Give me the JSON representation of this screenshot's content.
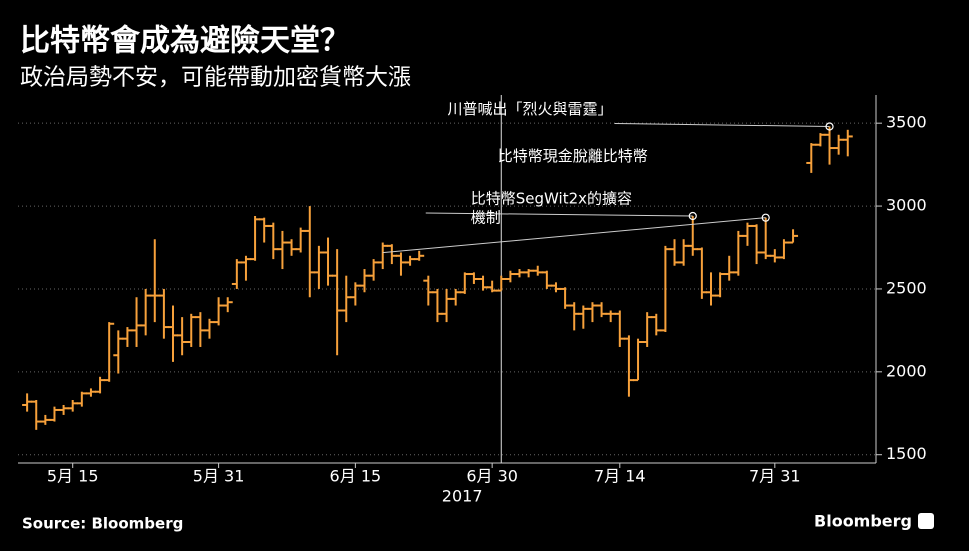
{
  "chart_data": {
    "type": "ohlc",
    "title": "比特幣會成為避險天堂？",
    "subtitle": "政治局勢不安，可能帶動加密貨幣大漲",
    "source": "Source: Bloomberg",
    "brand": "Bloomberg",
    "color": "#f7a13b",
    "x": [
      "2017-05-10",
      "2017-05-11",
      "2017-05-12",
      "2017-05-13",
      "2017-05-14",
      "2017-05-15",
      "2017-05-16",
      "2017-05-17",
      "2017-05-18",
      "2017-05-19",
      "2017-05-20",
      "2017-05-21",
      "2017-05-22",
      "2017-05-23",
      "2017-05-24",
      "2017-05-25",
      "2017-05-26",
      "2017-05-27",
      "2017-05-28",
      "2017-05-29",
      "2017-05-30",
      "2017-05-31",
      "2017-06-01",
      "2017-06-02",
      "2017-06-03",
      "2017-06-04",
      "2017-06-05",
      "2017-06-06",
      "2017-06-07",
      "2017-06-08",
      "2017-06-09",
      "2017-06-10",
      "2017-06-11",
      "2017-06-12",
      "2017-06-13",
      "2017-06-14",
      "2017-06-15",
      "2017-06-16",
      "2017-06-17",
      "2017-06-18",
      "2017-06-19",
      "2017-06-20",
      "2017-06-21",
      "2017-06-22",
      "2017-06-23",
      "2017-06-24",
      "2017-06-25",
      "2017-06-26",
      "2017-06-27",
      "2017-06-28",
      "2017-06-29",
      "2017-06-30",
      "2017-07-01",
      "2017-07-02",
      "2017-07-03",
      "2017-07-04",
      "2017-07-05",
      "2017-07-06",
      "2017-07-07",
      "2017-07-08",
      "2017-07-09",
      "2017-07-10",
      "2017-07-11",
      "2017-07-12",
      "2017-07-13",
      "2017-07-14",
      "2017-07-15",
      "2017-07-16",
      "2017-07-17",
      "2017-07-18",
      "2017-07-19",
      "2017-07-20",
      "2017-07-21",
      "2017-07-22",
      "2017-07-23",
      "2017-07-24",
      "2017-07-25",
      "2017-07-26",
      "2017-07-27",
      "2017-07-28",
      "2017-07-29",
      "2017-07-30",
      "2017-07-31",
      "2017-08-01",
      "2017-08-02",
      "2017-08-04",
      "2017-08-05",
      "2017-08-06",
      "2017-08-07",
      "2017-08-08"
    ],
    "open": [
      1800,
      1820,
      1700,
      1710,
      1770,
      1780,
      1810,
      1870,
      1880,
      1950,
      2100,
      2200,
      2250,
      2280,
      2460,
      2460,
      2270,
      2220,
      2180,
      2330,
      2250,
      2300,
      2400,
      2530,
      2660,
      2680,
      2920,
      2880,
      2740,
      2780,
      2740,
      2850,
      2600,
      2720,
      2580,
      2370,
      2450,
      2520,
      2580,
      2660,
      2760,
      2700,
      2660,
      2680,
      2550,
      2480,
      2350,
      2440,
      2480,
      2590,
      2560,
      2510,
      2490,
      2560,
      2590,
      2600,
      2610,
      2600,
      2520,
      2500,
      2400,
      2350,
      2380,
      2400,
      2350,
      2350,
      2200,
      1950,
      2180,
      2330,
      2250,
      2740,
      2660,
      2760,
      2740,
      2480,
      2460,
      2590,
      2600,
      2820,
      2880,
      2720,
      2700,
      2690,
      2780,
      3260,
      3370,
      3430,
      3350,
      3400
    ],
    "high": [
      1870,
      1830,
      1740,
      1790,
      1800,
      1830,
      1880,
      1900,
      1970,
      2300,
      2250,
      2270,
      2450,
      2500,
      2800,
      2500,
      2400,
      2330,
      2350,
      2360,
      2320,
      2450,
      2450,
      2680,
      2700,
      2940,
      2930,
      2900,
      2850,
      2800,
      2870,
      3000,
      2760,
      2810,
      2740,
      2580,
      2540,
      2620,
      2680,
      2780,
      2770,
      2720,
      2700,
      2730,
      2580,
      2500,
      2500,
      2500,
      2600,
      2600,
      2580,
      2550,
      2580,
      2610,
      2620,
      2620,
      2640,
      2610,
      2540,
      2510,
      2420,
      2400,
      2420,
      2420,
      2370,
      2370,
      2220,
      2200,
      2360,
      2350,
      2760,
      2800,
      2800,
      2940,
      2750,
      2600,
      2600,
      2700,
      2850,
      2900,
      2890,
      2930,
      2740,
      2800,
      2860,
      3380,
      3440,
      3480,
      3430,
      3460
    ],
    "low": [
      1760,
      1650,
      1680,
      1700,
      1740,
      1760,
      1790,
      1850,
      1870,
      1940,
      1990,
      2150,
      2150,
      2220,
      2300,
      2200,
      2060,
      2100,
      2150,
      2150,
      2200,
      2280,
      2360,
      2500,
      2550,
      2670,
      2780,
      2680,
      2620,
      2700,
      2720,
      2450,
      2500,
      2520,
      2100,
      2300,
      2400,
      2480,
      2550,
      2620,
      2650,
      2580,
      2640,
      2670,
      2400,
      2300,
      2300,
      2400,
      2470,
      2530,
      2490,
      2480,
      2490,
      2540,
      2570,
      2570,
      2580,
      2500,
      2480,
      2380,
      2250,
      2260,
      2300,
      2330,
      2300,
      2150,
      1850,
      1950,
      2150,
      2220,
      2240,
      2640,
      2640,
      2700,
      2440,
      2400,
      2450,
      2550,
      2580,
      2760,
      2650,
      2680,
      2660,
      2680,
      2780,
      3200,
      3360,
      3250,
      3310,
      3300
    ],
    "close": [
      1820,
      1700,
      1710,
      1770,
      1780,
      1810,
      1870,
      1880,
      1950,
      2290,
      2200,
      2250,
      2280,
      2460,
      2460,
      2270,
      2220,
      2180,
      2330,
      2250,
      2300,
      2400,
      2420,
      2660,
      2680,
      2920,
      2880,
      2740,
      2780,
      2740,
      2850,
      2600,
      2720,
      2580,
      2370,
      2450,
      2520,
      2580,
      2660,
      2760,
      2700,
      2660,
      2680,
      2700,
      2480,
      2350,
      2440,
      2480,
      2590,
      2560,
      2510,
      2490,
      2560,
      2590,
      2600,
      2610,
      2600,
      2520,
      2500,
      2400,
      2350,
      2380,
      2400,
      2350,
      2350,
      2200,
      1950,
      2180,
      2330,
      2250,
      2740,
      2660,
      2760,
      2740,
      2480,
      2460,
      2590,
      2600,
      2820,
      2880,
      2720,
      2700,
      2690,
      2780,
      2820,
      3370,
      3430,
      3350,
      3400,
      3420
    ],
    "xlim": [
      "2017-05-09",
      "2017-08-10"
    ],
    "xticks": [
      {
        "value": "2017-05-15",
        "label": "5月 15"
      },
      {
        "value": "2017-05-31",
        "label": "5月 31"
      },
      {
        "value": "2017-06-15",
        "label": "6月 15"
      },
      {
        "value": "2017-06-30",
        "label": "6月 30"
      },
      {
        "value": "2017-07-14",
        "label": "7月 14"
      },
      {
        "value": "2017-07-31",
        "label": "7月 31"
      }
    ],
    "x_year": "2017",
    "highlight_x": "2017-07-01",
    "ylim": [
      1450,
      3670
    ],
    "yticks": [
      1500,
      2000,
      2500,
      3000,
      3500
    ],
    "grid": true,
    "annotations": [
      {
        "x": "2017-08-06",
        "y": 3480,
        "lines": [
          "川普喊出「烈火與雷霆」"
        ]
      },
      {
        "x": "2017-07-30",
        "y": 2930,
        "lines": [
          "比特幣現金脫離比特幣"
        ]
      },
      {
        "x": "2017-07-22",
        "y": 2940,
        "lines": [
          "比特幣SegWit2x的擴容",
          "機制"
        ]
      }
    ]
  }
}
